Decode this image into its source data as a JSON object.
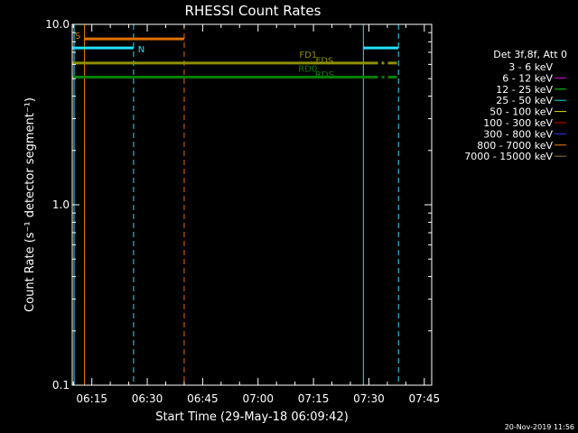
{
  "chart_data": {
    "type": "line",
    "title": "RHESSI Count Rates",
    "xlabel": "Start Time (29-May-18 06:09:42)",
    "ylabel": "Count Rate (s⁻¹ detector segment⁻¹)",
    "x_ticks": [
      "06:15",
      "06:30",
      "06:45",
      "07:00",
      "07:15",
      "07:30",
      "07:45"
    ],
    "x_tick_minutes": [
      375,
      390,
      405,
      420,
      435,
      450,
      465
    ],
    "xlim_minutes": [
      369.7,
      467
    ],
    "y_scale": "log",
    "ylim": [
      0.1,
      10.0
    ],
    "y_ticks": [
      "0.1",
      "1.0",
      "10.0"
    ],
    "y_tick_values": [
      0.1,
      1.0,
      10.0
    ],
    "footer": "20-Nov-2019 11:56",
    "legend": {
      "title": "Det 3f,8f, Att 0",
      "entries": [
        {
          "label": "3 - 6 keV",
          "color": "#000000"
        },
        {
          "label": "6 - 12 keV",
          "color": "#e000e0"
        },
        {
          "label": "12 - 25 keV",
          "color": "#00e000"
        },
        {
          "label": "25 - 50 keV",
          "color": "#00e0e0"
        },
        {
          "label": "50 - 100 keV",
          "color": "#e0e000"
        },
        {
          "label": "100 - 300 keV",
          "color": "#e00000"
        },
        {
          "label": "300 - 800 keV",
          "color": "#3030ff"
        },
        {
          "label": "800 - 7000 keV",
          "color": "#ff8000"
        },
        {
          "label": "7000 - 15000 keV",
          "color": "#a07020"
        }
      ]
    },
    "flag_bars": [
      {
        "label": "S",
        "color": "#e07000",
        "y": 8.3,
        "segments": [
          [
            373,
            400
          ]
        ]
      },
      {
        "label": "N",
        "color": "#20e0ff",
        "y": 7.4,
        "segments": [
          [
            369.7,
            386.3
          ],
          [
            448.5,
            458
          ]
        ]
      },
      {
        "label": "FD1",
        "color": "#909000",
        "y": 6.1,
        "segments": [
          [
            369.7,
            450
          ]
        ],
        "dashed_segments": [
          [
            450,
            458
          ]
        ]
      },
      {
        "label": "RD0",
        "color": "#008000",
        "y": 5.1,
        "segments": [
          [
            369.7,
            450
          ]
        ],
        "dashed_segments": [
          [
            450,
            458
          ]
        ]
      }
    ],
    "sub_labels": [
      {
        "label": "FDS",
        "color": "#909000",
        "x": 438,
        "y": 6.2
      },
      {
        "label": "RDS",
        "color": "#008000",
        "x": 438,
        "y": 5.2
      }
    ],
    "vertical_lines": [
      {
        "x": 370.2,
        "color": "#20e0ff",
        "style": "solid"
      },
      {
        "x": 373.0,
        "color": "#e07000",
        "style": "solid"
      },
      {
        "x": 386.3,
        "color": "#20e0ff",
        "style": "dashed"
      },
      {
        "x": 400.0,
        "color": "#e07000",
        "style": "dashed"
      },
      {
        "x": 448.5,
        "color": "#20e0ff",
        "style": "solid"
      },
      {
        "x": 458.0,
        "color": "#20e0ff",
        "style": "dashed"
      }
    ]
  }
}
